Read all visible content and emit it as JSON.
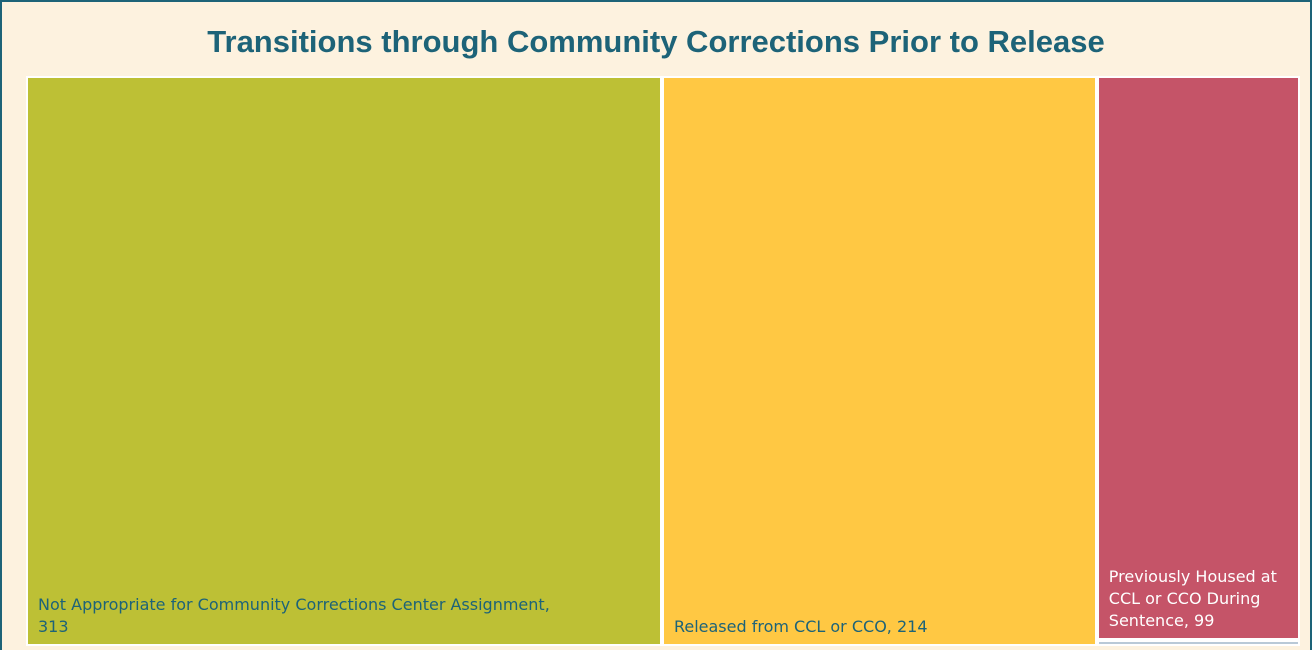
{
  "chart_data": {
    "type": "treemap",
    "title": "Transitions through Community Corrections Prior to Release",
    "labels": [
      "Not Appropriate for Community Corrections Center Assignment, 313",
      "Released from CCL or CCO, 214",
      "Previously Housed at CCL or CCO During Sentence, 99",
      null
    ],
    "values": [
      313,
      214,
      99,
      1
    ],
    "colors": [
      "#bdc035",
      "#ffc843",
      "#c55468",
      "#b9c9d7"
    ],
    "label_colors": [
      "#1d6378",
      "#1d6378",
      "#ffffff",
      "#1d6378"
    ]
  }
}
